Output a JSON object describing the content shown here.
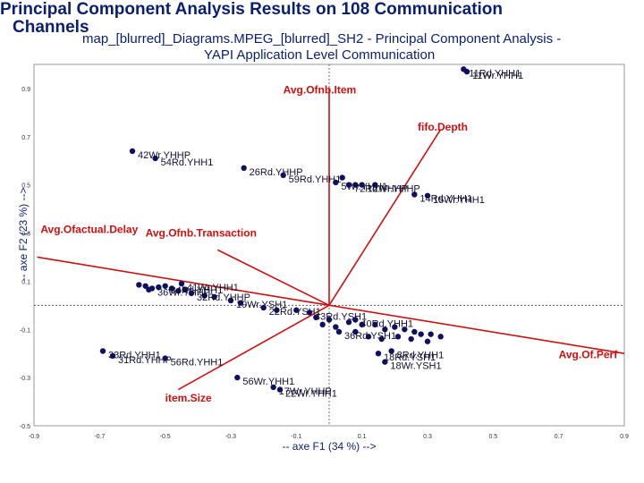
{
  "page": {
    "title_line1": "Principal Component Analysis Results on 108 Communication",
    "title_line2": "Channels",
    "subtitle_line1": "map_[blurred]_Diagrams.MPEG_[blurred]_SH2 - Principal Component Analysis -",
    "subtitle_line2": "YAPI Application Level Communication"
  },
  "chart_data": {
    "type": "scatter",
    "xlabel": "-- axe F1 (34 %) -->",
    "ylabel": "-- axe F2 (23 %) -->",
    "xlim": [
      -0.9,
      0.9
    ],
    "ylim": [
      -0.5,
      1.0
    ],
    "x_ticks": [
      "-0.9",
      "-0.7",
      "-0.5",
      "-0.3",
      "-0.1",
      "0.1",
      "0.3",
      "0.5",
      "0.7",
      "0.9"
    ],
    "y_ticks": [
      "0.9",
      "0.7",
      "0.5",
      "0.3",
      "0.1",
      "-0.1",
      "-0.3",
      "-0.5"
    ],
    "colors": {
      "points": "#101060",
      "vectors": "#cc1111",
      "text": "#0a1f70"
    },
    "variables": [
      {
        "name": "Avg.Ofnb.Item",
        "x": 0.0,
        "y": 0.9,
        "label_x": -0.14,
        "label_y": 0.88
      },
      {
        "name": "fifo.Depth",
        "x": 0.34,
        "y": 0.73,
        "label_x": 0.27,
        "label_y": 0.725
      },
      {
        "name": "Avg.Ofactual.Delay",
        "x": -0.89,
        "y": 0.2,
        "label_x": -0.88,
        "label_y": 0.3
      },
      {
        "name": "Avg.Ofnb.Transaction",
        "x": -0.34,
        "y": 0.23,
        "label_x": -0.56,
        "label_y": 0.285
      },
      {
        "name": "Avg.Of.Perf",
        "x": 0.9,
        "y": -0.2,
        "label_x": 0.7,
        "label_y": -0.22
      },
      {
        "name": "item.Size",
        "x": -0.46,
        "y": -0.35,
        "label_x": -0.5,
        "label_y": -0.4
      }
    ],
    "points": [
      {
        "label": "11Rd.YHH1",
        "x": 0.41,
        "y": 0.98
      },
      {
        "label": "11Wr.YHH1",
        "x": 0.42,
        "y": 0.97
      },
      {
        "label": "42Wr.YHHP",
        "x": -0.6,
        "y": 0.64
      },
      {
        "label": "54Rd.YHH1",
        "x": -0.53,
        "y": 0.61
      },
      {
        "label": "26Rd.YHHP",
        "x": -0.26,
        "y": 0.57
      },
      {
        "label": "59Rd.YHH1",
        "x": -0.14,
        "y": 0.54
      },
      {
        "label": "5Wr.YHH1",
        "x": 0.02,
        "y": 0.51
      },
      {
        "label": "72Rd.YHHP",
        "x": 0.06,
        "y": 0.5
      },
      {
        "label": "12Wr.YHHP",
        "x": 0.1,
        "y": 0.5
      },
      {
        "label": "14Rd.YHH1",
        "x": 0.26,
        "y": 0.46
      },
      {
        "label": "15Wr.YHH1",
        "x": 0.3,
        "y": 0.455
      },
      {
        "label": "41Wr.YHH1",
        "x": -0.45,
        "y": 0.09
      },
      {
        "label": "36Wr.YHHP",
        "x": -0.54,
        "y": 0.07
      },
      {
        "label": "34Rd.YHH1",
        "x": -0.5,
        "y": 0.08
      },
      {
        "label": "32Rd.YHHP",
        "x": -0.42,
        "y": 0.05
      },
      {
        "label": "19Wr.YSH1",
        "x": -0.3,
        "y": 0.02
      },
      {
        "label": "22Rd.YSH1",
        "x": -0.2,
        "y": -0.01
      },
      {
        "label": "43Rd.YSH1",
        "x": -0.06,
        "y": -0.03
      },
      {
        "label": "40Rd.YHH1",
        "x": 0.08,
        "y": -0.06
      },
      {
        "label": "36Rd.YSH1",
        "x": 0.03,
        "y": -0.11
      },
      {
        "label": "33Rd.YHH1",
        "x": -0.69,
        "y": -0.19
      },
      {
        "label": "31Rd.YHHP",
        "x": -0.66,
        "y": -0.21
      },
      {
        "label": "56Rd.YHH1",
        "x": -0.5,
        "y": -0.22
      },
      {
        "label": "18Rd.YSH1",
        "x": 0.15,
        "y": -0.2
      },
      {
        "label": "8Rd.YHH1",
        "x": 0.19,
        "y": -0.19
      },
      {
        "label": "18Wr.YSH1",
        "x": 0.17,
        "y": -0.235
      },
      {
        "label": "56Wr.YHH1",
        "x": -0.28,
        "y": -0.3
      },
      {
        "label": "17Wr.YHHP",
        "x": -0.17,
        "y": -0.34
      },
      {
        "label": "22Wr.YHH1",
        "x": -0.15,
        "y": -0.35
      }
    ],
    "cluster_points": [
      [
        -0.58,
        0.085
      ],
      [
        -0.56,
        0.08
      ],
      [
        -0.55,
        0.065
      ],
      [
        -0.52,
        0.075
      ],
      [
        -0.48,
        0.07
      ],
      [
        -0.46,
        0.06
      ],
      [
        -0.44,
        0.065
      ],
      [
        -0.38,
        0.04
      ],
      [
        -0.35,
        0.035
      ],
      [
        -0.27,
        0.01
      ],
      [
        -0.16,
        -0.02
      ],
      [
        -0.1,
        -0.02
      ],
      [
        -0.04,
        -0.05
      ],
      [
        0.0,
        -0.06
      ],
      [
        0.06,
        -0.07
      ],
      [
        0.1,
        -0.08
      ],
      [
        0.14,
        -0.08
      ],
      [
        0.17,
        -0.1
      ],
      [
        0.2,
        -0.09
      ],
      [
        0.23,
        -0.1
      ],
      [
        0.26,
        -0.11
      ],
      [
        0.28,
        -0.12
      ],
      [
        0.31,
        -0.12
      ],
      [
        0.34,
        -0.13
      ],
      [
        0.12,
        -0.13
      ],
      [
        0.16,
        -0.14
      ],
      [
        0.21,
        -0.13
      ],
      [
        0.25,
        -0.14
      ],
      [
        0.3,
        -0.15
      ],
      [
        0.08,
        -0.11
      ],
      [
        0.02,
        -0.09
      ],
      [
        -0.02,
        -0.08
      ],
      [
        0.04,
        0.53
      ],
      [
        0.08,
        0.5
      ],
      [
        0.14,
        0.5
      ]
    ]
  }
}
